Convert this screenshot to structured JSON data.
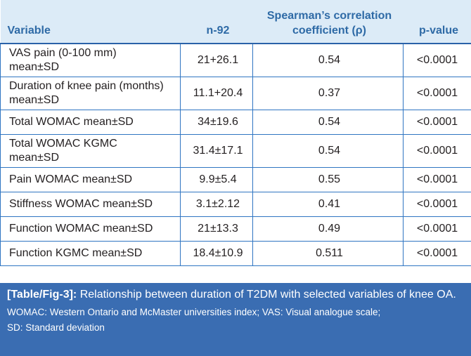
{
  "table": {
    "headers": {
      "variable": "Variable",
      "n": "n-92",
      "rho_line1": "Spearman’s correlation",
      "rho_line2": "coefficient (ρ)",
      "p": "p-value"
    },
    "rows": [
      {
        "label_line1": "VAS pain (0-100 mm)",
        "label_line2": "mean±SD",
        "n": "21+26.1",
        "rho": "0.54",
        "p": "<0.0001"
      },
      {
        "label_line1": "Duration of knee pain (months)",
        "label_line2": "mean±SD",
        "n": "11.1+20.4",
        "rho": "0.37",
        "p": "<0.0001"
      },
      {
        "label_line1": "Total WOMAC mean±SD",
        "n": "34±19.6",
        "rho": "0.54",
        "p": "<0.0001"
      },
      {
        "label_line1": "Total WOMAC KGMC",
        "label_line2": "mean±SD",
        "n": "31.4±17.1",
        "rho": "0.54",
        "p": "<0.0001"
      },
      {
        "label_line1": "Pain WOMAC mean±SD",
        "n": "9.9±5.4",
        "rho": "0.55",
        "p": "<0.0001"
      },
      {
        "label_line1": "Stiffness WOMAC mean±SD",
        "n": "3.1±2.12",
        "rho": "0.41",
        "p": "<0.0001"
      },
      {
        "label_line1": "Function WOMAC mean±SD",
        "n": "21±13.3",
        "rho": "0.49",
        "p": "<0.0001"
      },
      {
        "label_line1": "Function KGMC mean±SD",
        "n": "18.4±10.9",
        "rho": "0.511",
        "p": "<0.0001"
      }
    ]
  },
  "caption": {
    "label": "[Table/Fig-3]:",
    "title": " Relationship between duration of T2DM with selected variables of knee OA.",
    "note_line1": "WOMAC: Western Ontario and McMaster universities index; VAS: Visual analogue scale;",
    "note_line2": "SD: Standard deviation"
  },
  "colors": {
    "header_bg": "#dcebf7",
    "header_text": "#2e6aa6",
    "rule": "#2f75c2",
    "caption_bg": "#3a6db2"
  }
}
